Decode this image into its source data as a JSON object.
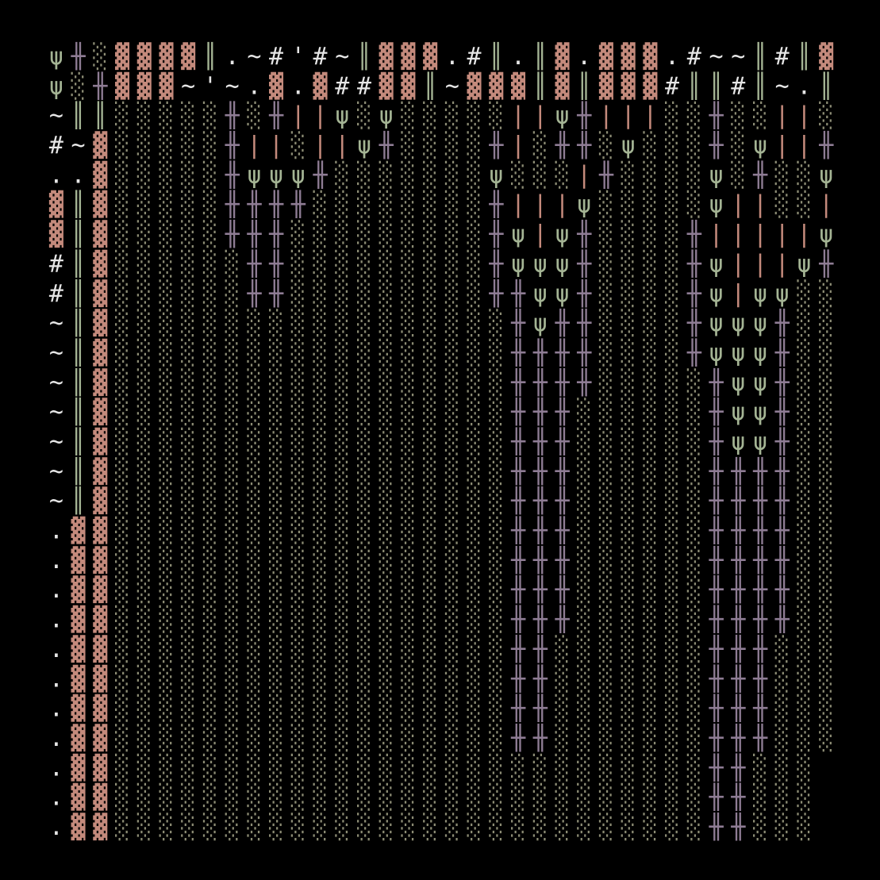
{
  "rows": [
    "ψ╫░▓▓▓▓║.~#'#~║▓▓▓.#║.║▓.▓▓▓.#~~║#║▓",
    "ψ░╫▓▓▓~'~.▓.▓##▓▓║~▓▓▓║▓║▓▓▓#║║#║~.║",
    "~║║░░░░░╫░╫||ψ░ψ░░░░░||ψ╫|||░░╫░░||░",
    "#~▓░░░░░╫||░||ψ╫░░░░╫|░╫╫░ψ░░░╫░ψ||╫",
    "..▓░░░░░╫ψψψ╫░░░░░░░ψ░░░|╫░░░░ψ░╫░░ψ",
    "▓║▓░░░░░╫╫╫╫░░░░░░░░╫|||ψ░░░░░ψ||░░|",
    "▓║▓░░░░░╫╫╫░░░░░░░░░╫ψ|ψ╫░░░░╫|||||ψ",
    "#║▓░░░░░░╫╫░░░░░░░░░╫ψψψ╫░░░░╫ψ|||ψ╫",
    "#║▓░░░░░░╫╫░░░░░░░░░╫╫ψψ╫░░░░╫ψ|ψψ░░",
    "~║▓░░░░░░░░░░░░░░░░░░╫ψ╫╫░░░░╫ψψψ╫░░",
    "~║▓░░░░░░░░░░░░░░░░░░╫╫╫╫░░░░╫ψψψ╫░░",
    "~║▓░░░░░░░░░░░░░░░░░░╫╫╫╫░░░░░╫ψψ╫░░",
    "~║▓░░░░░░░░░░░░░░░░░░╫╫╫░░░░░░╫ψψ╫░░",
    "~║▓░░░░░░░░░░░░░░░░░░╫╫╫░░░░░░╫ψψ╫░░",
    "~║▓░░░░░░░░░░░░░░░░░░╫╫╫░░░░░░╫╫╫╫░░",
    "~║▓░░░░░░░░░░░░░░░░░░╫╫╫░░░░░░╫╫╫╫░░",
    ".▓▓░░░░░░░░░░░░░░░░░░╫╫╫░░░░░░╫╫╫╫░░",
    ".▓▓░░░░░░░░░░░░░░░░░░╫╫╫░░░░░░╫╫╫╫░░",
    ".▓▓░░░░░░░░░░░░░░░░░░╫╫╫░░░░░░╫╫╫╫░░",
    ".▓▓░░░░░░░░░░░░░░░░░░╫╫╫░░░░░░╫╫╫╫░░",
    ".▓▓░░░░░░░░░░░░░░░░░░╫╫░░░░░░░╫╫╫░░░",
    ".▓▓░░░░░░░░░░░░░░░░░░╫╫░░░░░░░╫╫╫░░░",
    ".▓▓░░░░░░░░░░░░░░░░░░╫╫░░░░░░░╫╫╫░░░",
    ".▓▓░░░░░░░░░░░░░░░░░░╫╫░░░░░░░╫╫╫░░░",
    ".▓▓░░░░░░░░░░░░░░░░░░░░░░░░░░░╫╫░░░",
    ".▓▓░░░░░░░░░░░░░░░░░░░░░░░░░░░╫╫░░░",
    ".▓▓░░░░░░░░░░░░░░░░░░░░░░░░░░░╫╫░░░"
  ],
  "palette": {
    "▓": "#c48a7c",
    "░": "#8c8c74",
    "╫": "#8e7c94",
    "ψ": "#a4b494",
    "|": "#c48a7c",
    "║": "#a4b494"
  },
  "text_color": "#e6e6e6"
}
